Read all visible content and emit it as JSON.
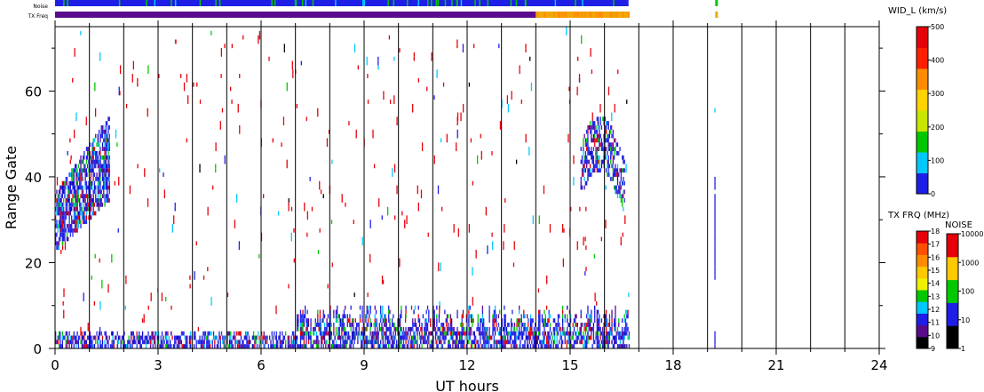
{
  "chart_data": {
    "type": "heatmap",
    "title": "",
    "xlabel": "UT hours",
    "ylabel": "Range Gate",
    "x_range": [
      0,
      24
    ],
    "y_range": [
      0,
      75
    ],
    "x_ticks": [
      "0",
      "3",
      "6",
      "9",
      "12",
      "15",
      "18",
      "21",
      "24"
    ],
    "y_ticks": [
      "0",
      "20",
      "40",
      "60"
    ],
    "grid": "vertical lines every hour",
    "data_coverage_hours": [
      0,
      16.7
    ],
    "features": [
      {
        "name": "echo region near start",
        "x_range": [
          0,
          1.6
        ],
        "gates": [
          23,
          57
        ]
      },
      {
        "name": "ground scatter band",
        "x_range": [
          0,
          16.7
        ],
        "gates": [
          0,
          10
        ]
      },
      {
        "name": "late echo region",
        "x_range": [
          15.3,
          16.6
        ],
        "gates": [
          32,
          52
        ]
      },
      {
        "name": "isolated echoes",
        "x_range": [
          19.2,
          19.35
        ],
        "gates": [
          0,
          40
        ]
      }
    ],
    "status_bars": [
      {
        "label": "Noise",
        "span_hours": [
          0,
          16.7
        ],
        "color": "#1e1ee6",
        "extra_hours": [
          19.25
        ]
      },
      {
        "label": "TX Freq",
        "span_hours": [
          0,
          16.7
        ],
        "color": "#5a0a8c",
        "late_color": "#f0a800",
        "late_start_hour": 14.0,
        "extra_hours": [
          19.25
        ]
      }
    ],
    "colorbars": [
      {
        "title": "WID_L (km/s)",
        "ticks": [
          "0",
          "100",
          "200",
          "300",
          "400",
          "500"
        ],
        "colors": [
          "#1e1ee6",
          "#00c8ff",
          "#00c800",
          "#c8e600",
          "#ffd200",
          "#ff8c00",
          "#ff2000",
          "#e6000a"
        ]
      },
      {
        "title": "TX FRQ (MHz)",
        "ticks": [
          "9",
          "10",
          "11",
          "12",
          "13",
          "14",
          "15",
          "16",
          "17",
          "18"
        ],
        "colors": [
          "#000000",
          "#5a0a8c",
          "#1e1ee6",
          "#00c8ff",
          "#00c800",
          "#f0f000",
          "#ffc800",
          "#ff8c00",
          "#ff5000",
          "#e6000a"
        ]
      },
      {
        "title": "NOISE",
        "ticks": [
          "1",
          "10",
          "100",
          "1000",
          "10000"
        ],
        "colors": [
          "#000000",
          "#1e1ee6",
          "#00c800",
          "#ffc800",
          "#e6000a"
        ]
      }
    ]
  }
}
